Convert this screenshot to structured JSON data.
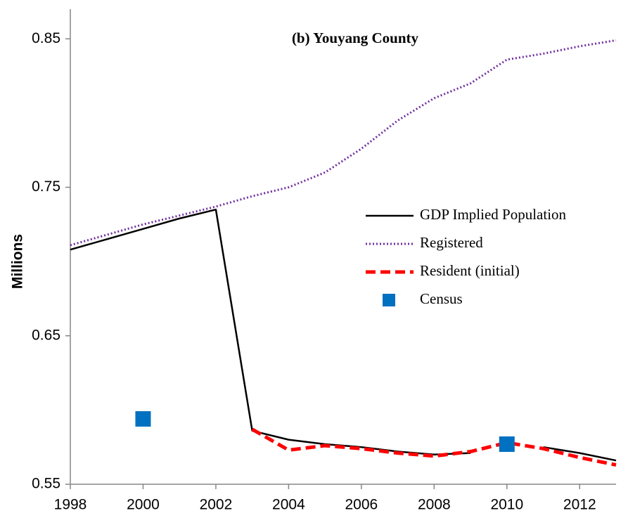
{
  "chart_data": {
    "type": "line",
    "title": "(b) Youyang County",
    "y_label": "Millions",
    "x": [
      1998,
      1999,
      2000,
      2001,
      2002,
      2003,
      2004,
      2005,
      2006,
      2007,
      2008,
      2009,
      2010,
      2011,
      2012,
      2013
    ],
    "xlim": [
      1998,
      2013
    ],
    "xticks": [
      1998,
      2000,
      2002,
      2004,
      2006,
      2008,
      2010,
      2012
    ],
    "ylim": [
      0.55,
      0.87
    ],
    "yticks": [
      0.55,
      0.65,
      0.75,
      0.85
    ],
    "grid": false,
    "legend": "right",
    "series": [
      {
        "name": "GDP Implied Population",
        "color": "#000000",
        "style": "solid",
        "values": [
          0.708,
          0.715,
          0.722,
          0.729,
          0.735,
          0.586,
          0.58,
          0.577,
          0.575,
          0.572,
          0.57,
          0.571,
          null,
          0.575,
          0.571,
          0.566
        ]
      },
      {
        "name": "Registered",
        "color": "#7030a0",
        "style": "dotted",
        "values": [
          0.711,
          0.718,
          0.725,
          0.731,
          0.737,
          0.744,
          0.75,
          0.76,
          0.776,
          0.795,
          0.81,
          0.82,
          0.836,
          0.84,
          0.845,
          0.849
        ]
      },
      {
        "name": "Resident (initial)",
        "color": "#ff0000",
        "style": "dashed",
        "values": [
          null,
          null,
          null,
          null,
          null,
          0.587,
          0.573,
          0.576,
          0.574,
          0.571,
          0.569,
          0.572,
          0.578,
          0.574,
          0.568,
          0.563
        ]
      },
      {
        "name": "Census",
        "color": "#0070c0",
        "style": "marker",
        "values": [
          null,
          null,
          0.594,
          null,
          null,
          null,
          null,
          null,
          null,
          null,
          null,
          null,
          0.577,
          null,
          null,
          null
        ]
      }
    ]
  }
}
